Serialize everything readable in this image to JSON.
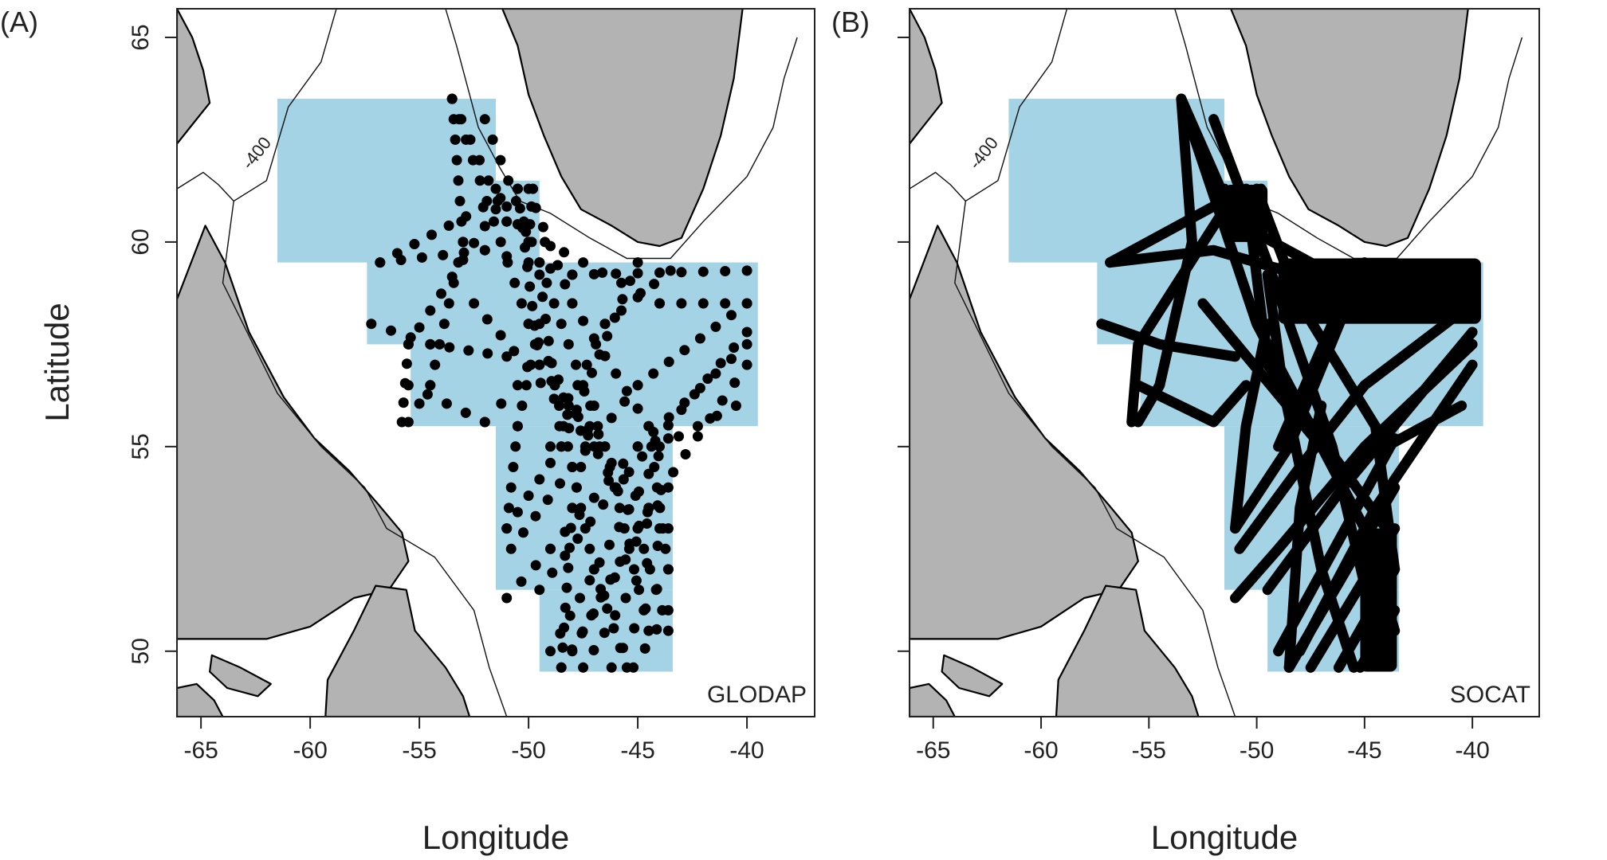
{
  "figure": {
    "y_axis_label": "Latitude",
    "colors": {
      "land": "#b3b3b3",
      "region": "#a4d3e5",
      "sample": "#000000",
      "frame": "#222222",
      "isobath": "#111111",
      "isobath_label": "#888888"
    }
  },
  "panels": [
    {
      "id": "A",
      "panel_label": "(A)",
      "dataset_label": "GLODAP",
      "x_axis_label": "Longitude",
      "isobath_label": "-400",
      "lon_ticks": [
        "-65",
        "-60",
        "-55",
        "-50",
        "-45",
        "-40"
      ],
      "lat_ticks": [
        "65",
        "60",
        "55",
        "50"
      ],
      "style": "stations"
    },
    {
      "id": "B",
      "panel_label": "(B)",
      "dataset_label": "SOCAT",
      "x_axis_label": "Longitude",
      "isobath_label": "-400",
      "lon_ticks": [
        "-65",
        "-60",
        "-55",
        "-50",
        "-45",
        "-40"
      ],
      "lat_ticks": [],
      "style": "tracks"
    }
  ],
  "map_data": {
    "lon_range": [
      -66.1,
      -36.9
    ],
    "lat_range": [
      48.4,
      65.7
    ],
    "lon_tick_values": [
      -65,
      -60,
      -55,
      -50,
      -45,
      -40
    ],
    "lat_tick_values": [
      65,
      60,
      55,
      50
    ],
    "region_boxes": [
      {
        "lon": [
          -61.5,
          -51.5
        ],
        "lat": [
          59.5,
          63.5
        ]
      },
      {
        "lon": [
          -57.4,
          -49.5
        ],
        "lat": [
          57.5,
          61.5
        ]
      },
      {
        "lon": [
          -55.4,
          -39.5
        ],
        "lat": [
          55.5,
          59.5
        ]
      },
      {
        "lon": [
          -51.5,
          -43.4
        ],
        "lat": [
          51.5,
          55.5
        ]
      },
      {
        "lon": [
          -49.5,
          -43.4
        ],
        "lat": [
          49.5,
          51.5
        ]
      }
    ],
    "land": [
      {
        "name": "greenland",
        "coords": [
          [
            -51.2,
            65.7
          ],
          [
            -50.5,
            64.8
          ],
          [
            -50.0,
            63.6
          ],
          [
            -49.3,
            62.6
          ],
          [
            -48.5,
            61.6
          ],
          [
            -47.6,
            60.8
          ],
          [
            -46.2,
            60.4
          ],
          [
            -45.0,
            60.0
          ],
          [
            -44.0,
            59.9
          ],
          [
            -43.0,
            60.1
          ],
          [
            -42.0,
            61.3
          ],
          [
            -41.2,
            62.6
          ],
          [
            -40.6,
            64.0
          ],
          [
            -40.2,
            65.7
          ]
        ]
      },
      {
        "name": "baffin",
        "coords": [
          [
            -66.1,
            65.7
          ],
          [
            -65.4,
            65.0
          ],
          [
            -64.9,
            64.2
          ],
          [
            -64.6,
            63.4
          ],
          [
            -65.5,
            62.8
          ],
          [
            -66.1,
            62.4
          ]
        ]
      },
      {
        "name": "labrador",
        "coords": [
          [
            -66.1,
            58.6
          ],
          [
            -64.8,
            60.4
          ],
          [
            -63.9,
            59.5
          ],
          [
            -62.8,
            57.8
          ],
          [
            -61.2,
            56.2
          ],
          [
            -59.8,
            55.2
          ],
          [
            -58.2,
            54.4
          ],
          [
            -56.9,
            53.6
          ],
          [
            -55.8,
            52.9
          ],
          [
            -55.5,
            52.2
          ],
          [
            -56.4,
            51.5
          ],
          [
            -58.0,
            51.3
          ],
          [
            -60.0,
            50.6
          ],
          [
            -62.0,
            50.3
          ],
          [
            -64.5,
            50.3
          ],
          [
            -66.1,
            50.3
          ]
        ]
      },
      {
        "name": "newfoundland",
        "coords": [
          [
            -59.3,
            48.4
          ],
          [
            -59.2,
            49.3
          ],
          [
            -58.0,
            50.5
          ],
          [
            -57.0,
            51.6
          ],
          [
            -55.6,
            51.5
          ],
          [
            -55.2,
            50.5
          ],
          [
            -53.8,
            49.6
          ],
          [
            -53.0,
            48.9
          ],
          [
            -52.7,
            48.4
          ]
        ]
      },
      {
        "name": "anticosti",
        "coords": [
          [
            -64.5,
            49.9
          ],
          [
            -63.2,
            49.6
          ],
          [
            -61.8,
            49.2
          ],
          [
            -62.4,
            48.9
          ],
          [
            -63.8,
            49.1
          ],
          [
            -64.6,
            49.5
          ]
        ]
      },
      {
        "name": "south-shore",
        "coords": [
          [
            -66.1,
            48.4
          ],
          [
            -66.1,
            49.1
          ],
          [
            -65.2,
            49.2
          ],
          [
            -64.4,
            48.8
          ],
          [
            -64.0,
            48.4
          ]
        ]
      }
    ],
    "isobaths": [
      [
        [
          -53.8,
          65.7
        ],
        [
          -53.3,
          64.8
        ],
        [
          -52.8,
          63.8
        ],
        [
          -52.3,
          62.8
        ],
        [
          -51.3,
          61.8
        ],
        [
          -50.4,
          61.0
        ],
        [
          -49.0,
          60.7
        ],
        [
          -47.2,
          60.1
        ],
        [
          -45.5,
          59.6
        ],
        [
          -43.5,
          59.6
        ],
        [
          -42.0,
          60.5
        ],
        [
          -40.0,
          61.6
        ],
        [
          -38.8,
          62.8
        ],
        [
          -38.3,
          64.0
        ],
        [
          -37.7,
          65.0
        ]
      ],
      [
        [
          -58.8,
          65.7
        ],
        [
          -59.5,
          64.4
        ],
        [
          -61.0,
          63.3
        ],
        [
          -62.0,
          61.5
        ],
        [
          -63.5,
          61.0
        ],
        [
          -64.0,
          59.0
        ],
        [
          -61.5,
          56.3
        ],
        [
          -59.5,
          55.0
        ],
        [
          -57.5,
          54.0
        ],
        [
          -56.5,
          53.0
        ],
        [
          -54.3,
          52.3
        ],
        [
          -52.5,
          51.0
        ],
        [
          -51.8,
          49.6
        ],
        [
          -51.0,
          48.4
        ]
      ],
      [
        [
          -66.1,
          61.3
        ],
        [
          -64.9,
          61.7
        ],
        [
          -64.2,
          61.4
        ],
        [
          -63.5,
          61.0
        ]
      ]
    ],
    "tracks": [
      [
        [
          -53.5,
          63.5
        ],
        [
          -50.0,
          58.0
        ],
        [
          -45.0,
          53.0
        ],
        [
          -43.6,
          50.5
        ]
      ],
      [
        [
          -53.5,
          63.5
        ],
        [
          -53.0,
          60.0
        ],
        [
          -54.5,
          56.5
        ],
        [
          -55.5,
          55.6
        ]
      ],
      [
        [
          -53.5,
          63.5
        ],
        [
          -51.0,
          60.5
        ],
        [
          -44.0,
          58.5
        ],
        [
          -40.0,
          58.5
        ]
      ],
      [
        [
          -52.0,
          63.0
        ],
        [
          -49.5,
          59.5
        ],
        [
          -46.5,
          55.0
        ],
        [
          -44.5,
          50.5
        ]
      ],
      [
        [
          -56.8,
          59.5
        ],
        [
          -52.0,
          59.8
        ],
        [
          -48.0,
          59.2
        ],
        [
          -40.0,
          59.3
        ]
      ],
      [
        [
          -56.8,
          59.5
        ],
        [
          -50.5,
          61.3
        ],
        [
          -49.5,
          57.0
        ],
        [
          -44.0,
          53.0
        ]
      ],
      [
        [
          -50.0,
          61.3
        ],
        [
          -48.0,
          58.5
        ],
        [
          -44.5,
          55.5
        ],
        [
          -43.6,
          52.0
        ]
      ],
      [
        [
          -51.5,
          60.8
        ],
        [
          -55.5,
          57.5
        ],
        [
          -55.8,
          55.6
        ]
      ],
      [
        [
          -49.5,
          59.2
        ],
        [
          -48.8,
          56.5
        ],
        [
          -47.0,
          52.0
        ],
        [
          -45.5,
          49.6
        ]
      ],
      [
        [
          -40.0,
          58.5
        ],
        [
          -45.0,
          56.5
        ],
        [
          -48.0,
          54.5
        ],
        [
          -50.8,
          52.5
        ]
      ],
      [
        [
          -40.0,
          57.8
        ],
        [
          -46.0,
          54.0
        ],
        [
          -49.5,
          51.5
        ]
      ],
      [
        [
          -40.0,
          57.0
        ],
        [
          -44.5,
          53.5
        ],
        [
          -48.0,
          50.0
        ]
      ],
      [
        [
          -40.5,
          56.0
        ],
        [
          -44.0,
          55.0
        ]
      ],
      [
        [
          -40.0,
          57.5
        ],
        [
          -45.0,
          55.0
        ],
        [
          -49.0,
          52.5
        ],
        [
          -51.0,
          51.3
        ]
      ],
      [
        [
          -43.6,
          55.2
        ],
        [
          -49.0,
          50.0
        ]
      ],
      [
        [
          -43.6,
          54.0
        ],
        [
          -48.5,
          49.6
        ]
      ],
      [
        [
          -43.6,
          53.0
        ],
        [
          -47.5,
          49.6
        ]
      ],
      [
        [
          -43.6,
          52.0
        ],
        [
          -46.2,
          49.6
        ]
      ],
      [
        [
          -43.6,
          51.0
        ],
        [
          -45.2,
          49.6
        ]
      ],
      [
        [
          -45.0,
          59.5
        ],
        [
          -48.5,
          55.0
        ],
        [
          -51.0,
          53.0
        ]
      ],
      [
        [
          -55.5,
          56.5
        ],
        [
          -52.0,
          55.6
        ],
        [
          -50.5,
          56.5
        ]
      ],
      [
        [
          -57.2,
          58.0
        ],
        [
          -54.5,
          57.5
        ],
        [
          -51.0,
          57.2
        ]
      ],
      [
        [
          -51.0,
          53.0
        ],
        [
          -50.5,
          55.5
        ],
        [
          -49.5,
          58.0
        ]
      ],
      [
        [
          -49.0,
          55.0
        ],
        [
          -46.5,
          58.0
        ],
        [
          -43.5,
          59.3
        ]
      ],
      [
        [
          -48.5,
          49.6
        ],
        [
          -48.0,
          53.5
        ],
        [
          -47.0,
          56.0
        ]
      ],
      [
        [
          -51.5,
          61.3
        ],
        [
          -50.0,
          60.0
        ],
        [
          -49.8,
          61.3
        ]
      ],
      [
        [
          -52.5,
          58.5
        ],
        [
          -47.0,
          55.0
        ]
      ]
    ],
    "track_blocks": [
      {
        "lon": [
          -49.0,
          -39.6
        ],
        "lat": [
          58.0,
          59.6
        ]
      },
      {
        "lon": [
          -51.5,
          -49.5
        ],
        "lat": [
          60.0,
          61.4
        ]
      },
      {
        "lon": [
          -45.2,
          -43.5
        ],
        "lat": [
          49.5,
          53.0
        ]
      }
    ]
  }
}
